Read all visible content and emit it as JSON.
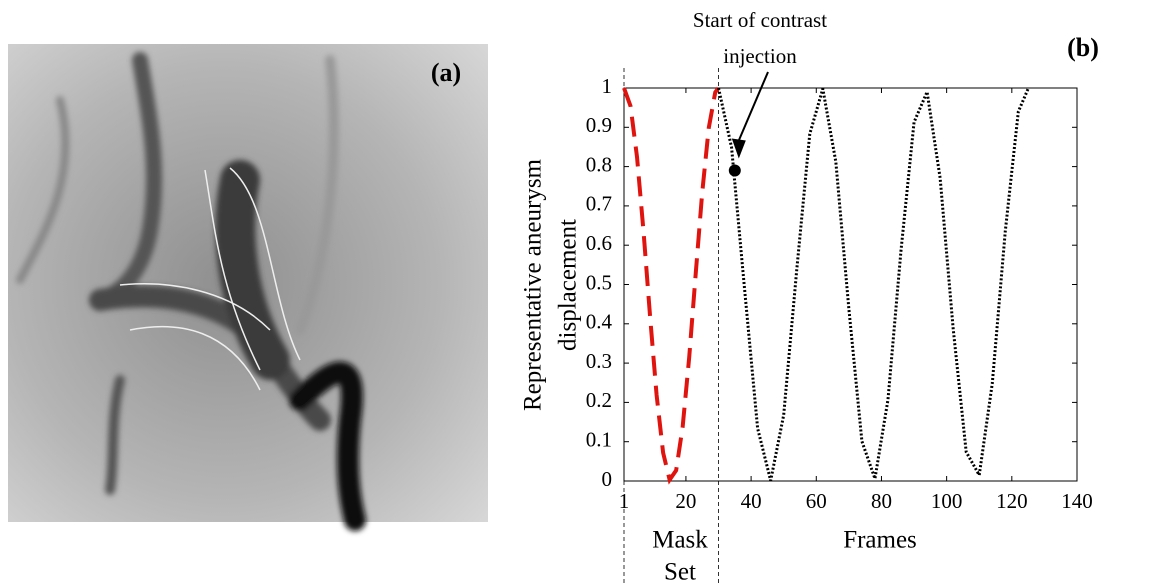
{
  "panel_a_label": "(a)",
  "chart_data": {
    "type": "line",
    "panel_label": "(b)",
    "annotation_lines": [
      "Start of contrast",
      "injection"
    ],
    "ylabel_lines": [
      "Representative aneurysm",
      "displacement"
    ],
    "xlabel": "Frames",
    "region_label_lines": [
      "Mask",
      "Set"
    ],
    "xlim": [
      1,
      140
    ],
    "xticks": [
      1,
      20,
      40,
      60,
      80,
      100,
      120,
      140
    ],
    "ylim": [
      0,
      1
    ],
    "yticks": [
      0,
      0.1,
      0.2,
      0.3,
      0.4,
      0.5,
      0.6,
      0.7,
      0.8,
      0.9,
      1
    ],
    "boundaries": [
      1,
      30
    ],
    "series": [
      {
        "color": "#e0140f",
        "style": "dashed",
        "x": [
          1,
          3,
          5,
          7,
          9,
          11,
          13,
          15,
          17,
          19,
          21,
          23,
          25,
          27,
          29,
          30
        ],
        "values": [
          1,
          0.954,
          0.824,
          0.634,
          0.419,
          0.219,
          0.072,
          0.003,
          0.027,
          0.138,
          0.314,
          0.527,
          0.734,
          0.898,
          0.989,
          1
        ]
      },
      {
        "color": "#000000",
        "style": "dotted",
        "x": [
          30,
          34,
          38,
          42,
          46,
          50,
          54,
          58,
          62,
          66,
          70,
          74,
          78,
          82,
          86,
          90,
          94,
          98,
          102,
          106,
          110,
          114,
          118,
          122,
          125
        ],
        "values": [
          1,
          0.849,
          0.488,
          0.134,
          0.001,
          0.168,
          0.537,
          0.883,
          0.998,
          0.812,
          0.438,
          0.101,
          0.006,
          0.207,
          0.587,
          0.913,
          0.99,
          0.771,
          0.388,
          0.074,
          0.015,
          0.248,
          0.636,
          0.94,
          0.998
        ]
      }
    ],
    "marker": {
      "x": 35,
      "y": 0.79
    }
  }
}
